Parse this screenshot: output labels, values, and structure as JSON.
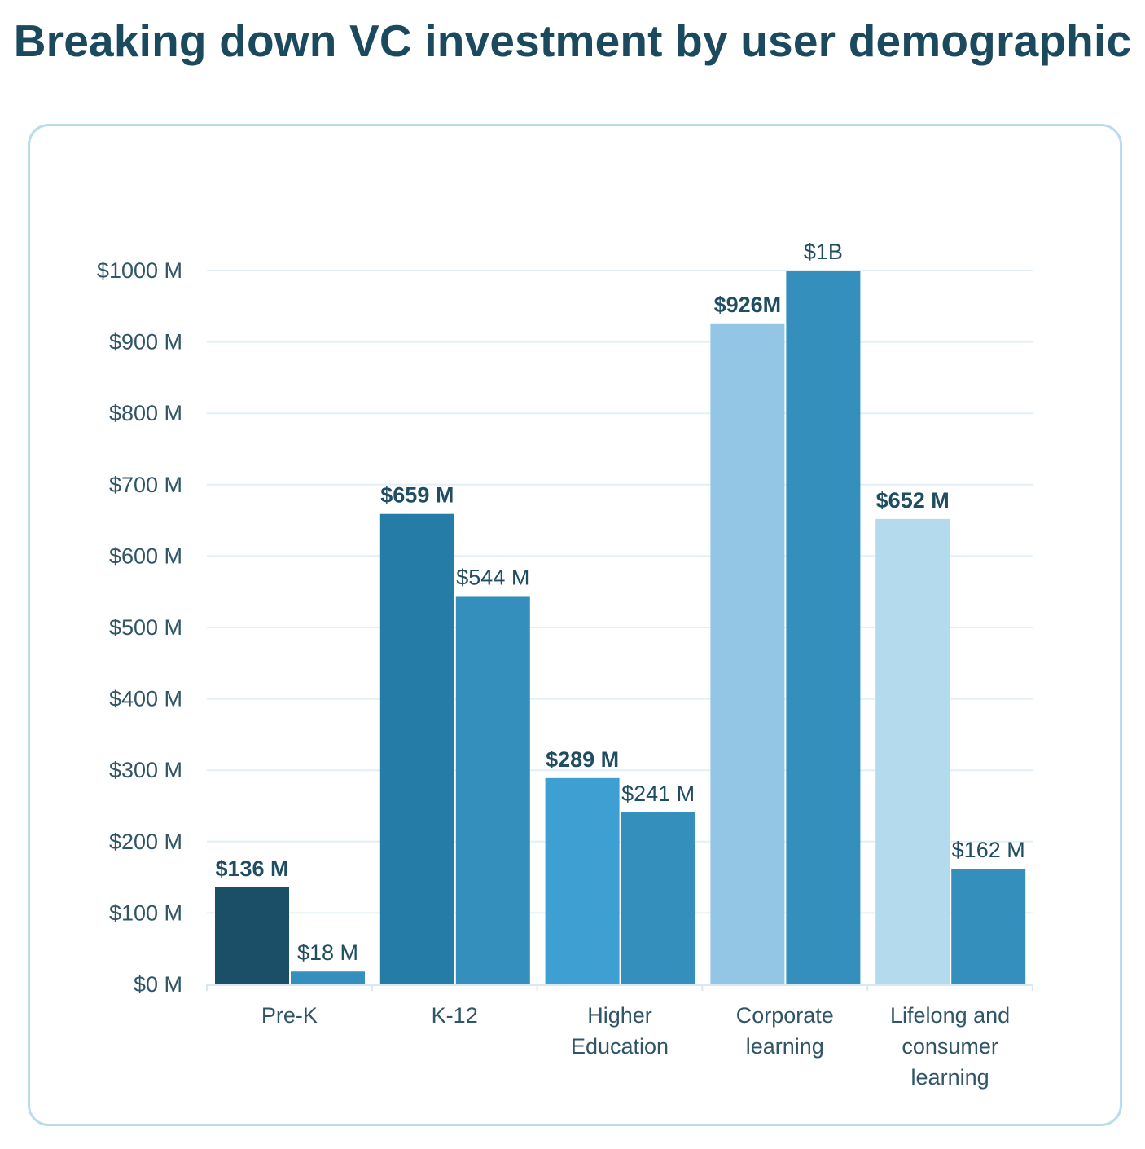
{
  "chart_data": {
    "type": "bar",
    "title": "Breaking down VC investment by user demographic",
    "xlabel": "",
    "ylabel": "",
    "ylim": [
      0,
      1000
    ],
    "y_ticks": [
      {
        "value": 0,
        "label": "$0 M"
      },
      {
        "value": 100,
        "label": "$100 M"
      },
      {
        "value": 200,
        "label": "$200 M"
      },
      {
        "value": 300,
        "label": "$300 M"
      },
      {
        "value": 400,
        "label": "$400 M"
      },
      {
        "value": 500,
        "label": "$500 M"
      },
      {
        "value": 600,
        "label": "$600 M"
      },
      {
        "value": 700,
        "label": "$700 M"
      },
      {
        "value": 800,
        "label": "$800 M"
      },
      {
        "value": 900,
        "label": "$900 M"
      },
      {
        "value": 1000,
        "label": "$1000 M"
      }
    ],
    "grid": true,
    "categories": [
      [
        "Pre-K"
      ],
      [
        "K-12"
      ],
      [
        "Higher",
        "Education"
      ],
      [
        "Corporate",
        "learning"
      ],
      [
        "Lifelong and",
        "consumer",
        "learning"
      ]
    ],
    "series": [
      {
        "name": "Series 1",
        "values": [
          136,
          659,
          289,
          926,
          652
        ],
        "labels": [
          "$136 M",
          "$659 M",
          "$289 M",
          "$926M",
          "$652 M"
        ],
        "colors": [
          "#1b4f68",
          "#257ca6",
          "#3d9fd2",
          "#93c6e4",
          "#b4dbed"
        ]
      },
      {
        "name": "Series 2",
        "values": [
          18,
          544,
          241,
          1000,
          162
        ],
        "labels": [
          "$18 M",
          "$544 M",
          "$241 M",
          "$1B",
          "$162 M"
        ],
        "colors": [
          "#348fbc",
          "#348fbc",
          "#348fbc",
          "#348fbc",
          "#348fbc"
        ]
      }
    ]
  }
}
